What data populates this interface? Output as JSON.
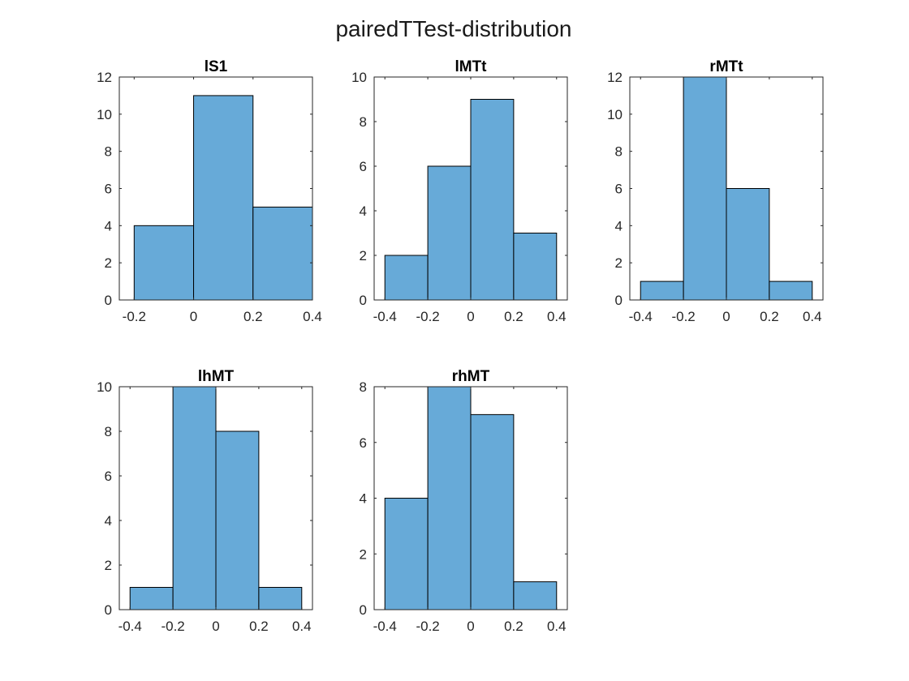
{
  "figure": {
    "title": "pairedTTest-distribution"
  },
  "colors": {
    "bar_fill": "#67aad8",
    "bar_edge": "#000000",
    "axis": "#262626"
  },
  "chart_data": [
    {
      "type": "bar",
      "title": "lS1",
      "bin_edges": [
        -0.2,
        0,
        0.2,
        0.4
      ],
      "values": [
        4,
        11,
        5
      ],
      "xlim": [
        -0.25,
        0.4
      ],
      "ylim": [
        0,
        12
      ],
      "xticks": [
        -0.2,
        0,
        0.2,
        0.4
      ],
      "xtick_labels": [
        "-0.2",
        "0",
        "0.2",
        "0.4"
      ],
      "yticks": [
        0,
        2,
        4,
        6,
        8,
        10,
        12
      ],
      "ytick_labels": [
        "0",
        "2",
        "4",
        "6",
        "8",
        "10",
        "12"
      ],
      "grid": false
    },
    {
      "type": "bar",
      "title": "lMTt",
      "bin_edges": [
        -0.4,
        -0.2,
        0,
        0.2,
        0.4
      ],
      "values": [
        2,
        6,
        9,
        3
      ],
      "xlim": [
        -0.45,
        0.45
      ],
      "ylim": [
        0,
        10
      ],
      "xticks": [
        -0.4,
        -0.2,
        0,
        0.2,
        0.4
      ],
      "xtick_labels": [
        "-0.4",
        "-0.2",
        "0",
        "0.2",
        "0.4"
      ],
      "yticks": [
        0,
        2,
        4,
        6,
        8,
        10
      ],
      "ytick_labels": [
        "0",
        "2",
        "4",
        "6",
        "8",
        "10"
      ],
      "grid": false
    },
    {
      "type": "bar",
      "title": "rMTt",
      "bin_edges": [
        -0.4,
        -0.2,
        0,
        0.2,
        0.4
      ],
      "values": [
        1,
        12,
        6,
        1
      ],
      "xlim": [
        -0.45,
        0.45
      ],
      "ylim": [
        0,
        12
      ],
      "xticks": [
        -0.4,
        -0.2,
        0,
        0.2,
        0.4
      ],
      "xtick_labels": [
        "-0.4",
        "-0.2",
        "0",
        "0.2",
        "0.4"
      ],
      "yticks": [
        0,
        2,
        4,
        6,
        8,
        10,
        12
      ],
      "ytick_labels": [
        "0",
        "2",
        "4",
        "6",
        "8",
        "10",
        "12"
      ],
      "grid": false
    },
    {
      "type": "bar",
      "title": "lhMT",
      "bin_edges": [
        -0.4,
        -0.2,
        0,
        0.2,
        0.4
      ],
      "values": [
        1,
        10,
        8,
        1
      ],
      "xlim": [
        -0.45,
        0.45
      ],
      "ylim": [
        0,
        10
      ],
      "xticks": [
        -0.4,
        -0.2,
        0,
        0.2,
        0.4
      ],
      "xtick_labels": [
        "-0.4",
        "-0.2",
        "0",
        "0.2",
        "0.4"
      ],
      "yticks": [
        0,
        2,
        4,
        6,
        8,
        10
      ],
      "ytick_labels": [
        "0",
        "2",
        "4",
        "6",
        "8",
        "10"
      ],
      "grid": false
    },
    {
      "type": "bar",
      "title": "rhMT",
      "bin_edges": [
        -0.4,
        -0.2,
        0,
        0.2,
        0.4
      ],
      "values": [
        4,
        8,
        7,
        1
      ],
      "xlim": [
        -0.45,
        0.45
      ],
      "ylim": [
        0,
        8
      ],
      "xticks": [
        -0.4,
        -0.2,
        0,
        0.2,
        0.4
      ],
      "xtick_labels": [
        "-0.4",
        "-0.2",
        "0",
        "0.2",
        "0.4"
      ],
      "yticks": [
        0,
        2,
        4,
        6,
        8
      ],
      "ytick_labels": [
        "0",
        "2",
        "4",
        "6",
        "8"
      ],
      "grid": false
    }
  ]
}
